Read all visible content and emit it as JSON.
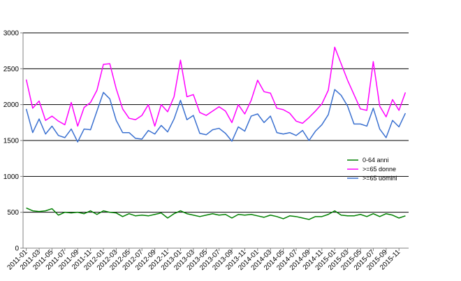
{
  "chart_data": {
    "type": "line",
    "title": "",
    "xlabel": "",
    "ylabel": "",
    "ylim": [
      0,
      3000
    ],
    "y_ticks": [
      0,
      500,
      1000,
      1500,
      2000,
      2500,
      3000
    ],
    "grid": "horizontal",
    "legend_position": "right",
    "x": [
      "2011-01",
      "2011-02",
      "2011-03",
      "2011-04",
      "2011-05",
      "2011-06",
      "2011-07",
      "2011-08",
      "2011-09",
      "2011-10",
      "2011-11",
      "2011-12",
      "2012-01",
      "2012-02",
      "2012-03",
      "2012-04",
      "2012-05",
      "2012-06",
      "2012-07",
      "2012-08",
      "2012-09",
      "2012-10",
      "2012-11",
      "2012-12",
      "2013-01",
      "2013-02",
      "2013-03",
      "2013-04",
      "2013-05",
      "2013-06",
      "2013-07",
      "2013-08",
      "2013-09",
      "2013-10",
      "2013-11",
      "2013-12",
      "2014-01",
      "2014-02",
      "2014-03",
      "2014-04",
      "2014-05",
      "2014-06",
      "2014-07",
      "2014-08",
      "2014-09",
      "2014-10",
      "2014-11",
      "2014-12",
      "2015-01",
      "2015-02",
      "2015-03",
      "2015-04",
      "2015-05",
      "2015-06",
      "2015-07",
      "2015-08",
      "2015-09",
      "2015-10",
      "2015-11",
      "2015-12"
    ],
    "x_tick_labels": [
      "2011-01",
      "2011-03",
      "2011-05",
      "2011-07",
      "2011-09",
      "2011-11",
      "2012-01",
      "2012-03",
      "2012-05",
      "2012-07",
      "2012-09",
      "2012-11",
      "2013-01",
      "2013-03",
      "2013-05",
      "2013-07",
      "2013-09",
      "2013-11",
      "2014-01",
      "2014-03",
      "2014-05",
      "2014-07",
      "2014-09",
      "2014-11",
      "2015-01",
      "2015-03",
      "2015-05",
      "2015-07",
      "2015-09",
      "2015-11"
    ],
    "series": [
      {
        "name": "0-64 anni",
        "color": "#008000",
        "values": [
          560,
          520,
          510,
          520,
          550,
          460,
          500,
          490,
          500,
          480,
          520,
          470,
          520,
          500,
          490,
          440,
          480,
          450,
          460,
          450,
          470,
          490,
          420,
          480,
          520,
          480,
          460,
          440,
          460,
          480,
          460,
          470,
          420,
          470,
          460,
          470,
          450,
          430,
          460,
          440,
          410,
          450,
          440,
          420,
          400,
          440,
          440,
          470,
          520,
          460,
          450,
          450,
          470,
          440,
          480,
          440,
          480,
          460,
          420,
          450
        ]
      },
      {
        "name": ">=65 donne",
        "color": "#ff00ff",
        "values": [
          2350,
          1950,
          2050,
          1780,
          1840,
          1770,
          1720,
          2030,
          1700,
          1960,
          2030,
          2200,
          2560,
          2570,
          2220,
          1940,
          1810,
          1790,
          1850,
          2000,
          1700,
          2000,
          1900,
          2110,
          2620,
          2110,
          2140,
          1890,
          1850,
          1910,
          1970,
          1910,
          1750,
          2000,
          1870,
          2060,
          2340,
          2180,
          2160,
          1950,
          1930,
          1880,
          1770,
          1740,
          1820,
          1910,
          2010,
          2200,
          2800,
          2570,
          2340,
          2140,
          1940,
          1920,
          2600,
          1980,
          1830,
          2070,
          1920,
          2170
        ]
      },
      {
        "name": ">=65 uomini",
        "color": "#3a70d0",
        "values": [
          1940,
          1610,
          1800,
          1590,
          1700,
          1570,
          1540,
          1660,
          1480,
          1660,
          1650,
          1910,
          2170,
          2080,
          1780,
          1610,
          1610,
          1530,
          1520,
          1640,
          1590,
          1710,
          1620,
          1800,
          2060,
          1790,
          1850,
          1600,
          1580,
          1650,
          1670,
          1600,
          1490,
          1690,
          1630,
          1840,
          1870,
          1750,
          1840,
          1610,
          1590,
          1610,
          1570,
          1640,
          1500,
          1630,
          1720,
          1860,
          2210,
          2130,
          1980,
          1730,
          1730,
          1700,
          1950,
          1660,
          1540,
          1780,
          1690,
          1880
        ]
      }
    ]
  }
}
